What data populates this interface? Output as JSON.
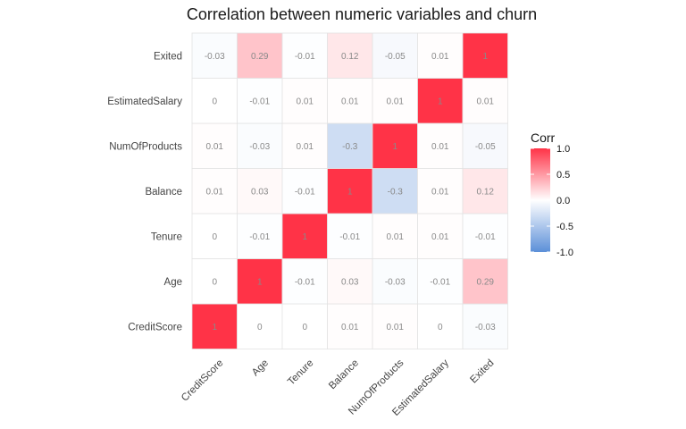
{
  "chart_data": {
    "type": "heatmap",
    "title": "Correlation between numeric variables and churn",
    "variables": [
      "CreditScore",
      "Age",
      "Tenure",
      "Balance",
      "NumOfProducts",
      "EstimatedSalary",
      "Exited"
    ],
    "values": [
      [
        1,
        0,
        0,
        0.01,
        0.01,
        0,
        -0.03
      ],
      [
        0,
        1,
        -0.01,
        0.03,
        -0.03,
        -0.01,
        0.29
      ],
      [
        0,
        -0.01,
        1,
        -0.01,
        0.01,
        0.01,
        -0.01
      ],
      [
        0.01,
        0.03,
        -0.01,
        1,
        -0.3,
        0.01,
        0.12
      ],
      [
        0.01,
        -0.03,
        0.01,
        -0.3,
        1,
        0.01,
        -0.05
      ],
      [
        0,
        -0.01,
        0.01,
        0.01,
        0.01,
        1,
        0.01
      ],
      [
        -0.03,
        0.29,
        -0.01,
        0.12,
        -0.05,
        0.01,
        1
      ]
    ],
    "legend": {
      "title": "Corr",
      "ticks": [
        1.0,
        0.5,
        0.0,
        -0.5,
        -1.0
      ],
      "tick_labels": [
        "1.0",
        "0.5",
        "0.0",
        "-0.5",
        "-1.0"
      ],
      "range": [
        -1,
        1
      ]
    },
    "colors": {
      "high": "#ff3347",
      "mid": "#ffffff",
      "low": "#5b8fd8"
    }
  }
}
